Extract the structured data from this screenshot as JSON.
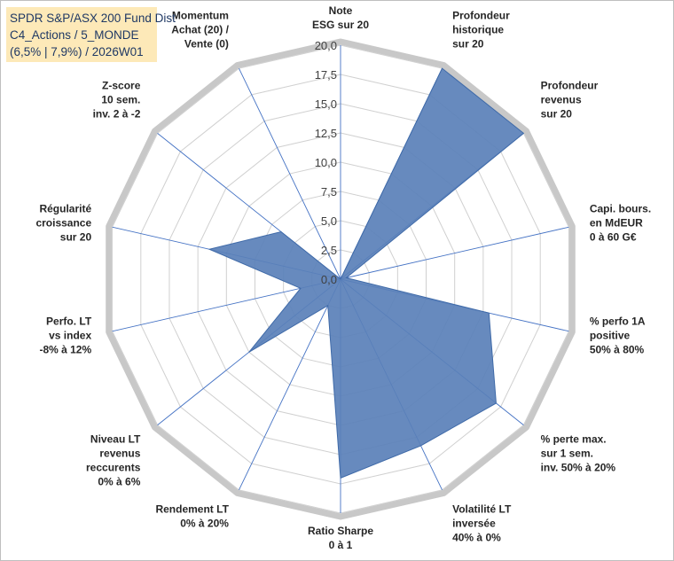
{
  "title": {
    "line1": "SPDR S&P/ASX 200 Fund Dist",
    "line2": "C4_Actions / 5_MONDE",
    "line3": "(6,5% | 7,9%) / 2026W01"
  },
  "colors": {
    "fill": "#5a80b8",
    "stroke": "#3f6aa8",
    "spokes": "#4472c4",
    "rings": "#d0d0d0",
    "outer_ring": "#c8c8c8",
    "title_bg": "#fde9b8",
    "title_text": "#1f3864"
  },
  "chart_data": {
    "type": "radar",
    "rmax": 20,
    "ticks": [
      "0,0",
      "2,5",
      "5,0",
      "7,5",
      "10,0",
      "12,5",
      "15,0",
      "17,5",
      "20,0"
    ],
    "tick_values": [
      0,
      2.5,
      5,
      7.5,
      10,
      12.5,
      15,
      17.5,
      20
    ],
    "axes": [
      {
        "label": [
          "Note",
          "ESG sur 20"
        ],
        "value": 0
      },
      {
        "label": [
          "Profondeur",
          "historique",
          "sur 20"
        ],
        "value": 20
      },
      {
        "label": [
          "Profondeur",
          "revenus",
          "sur 20"
        ],
        "value": 20
      },
      {
        "label": [
          "Capi. bours.",
          "en MdEUR",
          "0 à 60 G€"
        ],
        "value": 0.5
      },
      {
        "label": [
          "% perfo 1A",
          "positive",
          "50% à 80%"
        ],
        "value": 13
      },
      {
        "label": [
          "% perte max.",
          "sur 1 sem.",
          "inv. 50% à 20%"
        ],
        "value": 17
      },
      {
        "label": [
          "Volatilité LT",
          "inversée",
          "40% à 0%"
        ],
        "value": 15.8
      },
      {
        "label": [
          "Ratio Sharpe",
          "0 à 1"
        ],
        "value": 17
      },
      {
        "label": [
          "Rendement LT",
          "0% à 20%"
        ],
        "value": 2.5
      },
      {
        "label": [
          "Niveau LT",
          "revenus",
          "reccurents",
          "0% à 6%"
        ],
        "value": 10
      },
      {
        "label": [
          "Perfo. LT",
          "vs index",
          "-8% à 12%"
        ],
        "value": 3.5
      },
      {
        "label": [
          "Régularité",
          "croissance",
          "sur 20"
        ],
        "value": 11.5
      },
      {
        "label": [
          "Z-score",
          "10 sem.",
          "inv. 2 à -2"
        ],
        "value": 6.5
      },
      {
        "label": [
          "Momentum",
          "Achat (20) /",
          "Vente (0)"
        ],
        "value": 0
      }
    ]
  }
}
